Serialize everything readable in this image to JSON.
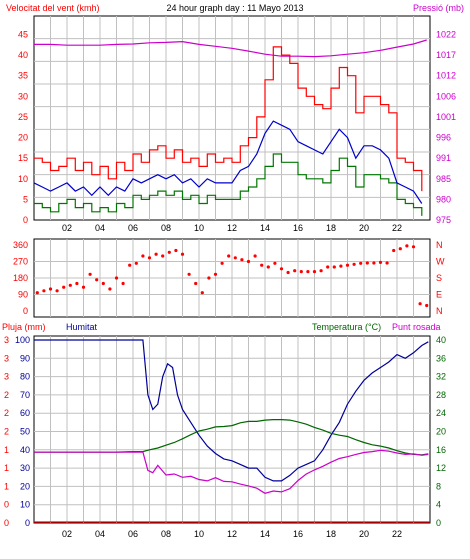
{
  "colors": {
    "wind_speed": "#ff0000",
    "wind_gust": "#ff0000",
    "wind_avg": "#0000cc",
    "wind_min": "#007700",
    "pressure": "#cc00cc",
    "wind_dir": "#ff0000",
    "rain": "#ff0000",
    "humidity": "#000099",
    "temperature": "#006600",
    "dewpoint": "#cc00cc",
    "grid": "#c0c0c0"
  },
  "chart_data": [
    {
      "type": "line",
      "title": "24 hour graph day : 11 Mayo 2013",
      "ylabel_left": "Velocitat del vent (kmh)",
      "ylabel_right": "Pressió (mb)",
      "y_ticks_left": [
        "0",
        "5",
        "10",
        "15",
        "20",
        "25",
        "30",
        "35",
        "40",
        "45"
      ],
      "y_ticks_right": [
        "975",
        "980",
        "985",
        "991",
        "996",
        "1001",
        "1006",
        "1012",
        "1017",
        "1022"
      ],
      "x_ticks": [
        "02",
        "04",
        "06",
        "08",
        "10",
        "12",
        "14",
        "16",
        "18",
        "20",
        "22"
      ],
      "grid": true,
      "ylim_left": [
        0,
        45
      ],
      "ylim_right": [
        975,
        1022
      ],
      "xlim": [
        0,
        24
      ],
      "series": [
        {
          "key": "gust",
          "x": [
            0,
            0.5,
            1,
            1.5,
            2,
            2.5,
            3,
            3.5,
            4,
            4.5,
            5,
            5.5,
            6,
            6.5,
            7,
            7.5,
            8,
            8.5,
            9,
            9.5,
            10,
            10.5,
            11,
            11.5,
            12,
            12.5,
            13,
            13.5,
            14,
            14.5,
            15,
            15.5,
            16,
            16.5,
            17,
            17.5,
            18,
            18.5,
            19,
            19.5,
            20,
            20.5,
            21,
            21.5,
            22,
            22.5,
            23,
            23.5
          ],
          "values": [
            15,
            14,
            12,
            13,
            15,
            12,
            14,
            11,
            13,
            10,
            14,
            12,
            16,
            14,
            17,
            18,
            15,
            17,
            14,
            15,
            13,
            16,
            14,
            15,
            14,
            18,
            20,
            25,
            34,
            42,
            40,
            38,
            32,
            30,
            28,
            27,
            32,
            37,
            35,
            26,
            30,
            30,
            28,
            26,
            15,
            14,
            12,
            7
          ]
        },
        {
          "key": "avg",
          "x": [
            0,
            0.5,
            1,
            1.5,
            2,
            2.5,
            3,
            3.5,
            4,
            4.5,
            5,
            5.5,
            6,
            6.5,
            7,
            7.5,
            8,
            8.5,
            9,
            9.5,
            10,
            10.5,
            11,
            11.5,
            12,
            12.5,
            13,
            13.5,
            14,
            14.5,
            15,
            15.5,
            16,
            16.5,
            17,
            17.5,
            18,
            18.5,
            19,
            19.5,
            20,
            20.5,
            21,
            21.5,
            22,
            22.5,
            23,
            23.5
          ],
          "values": [
            9,
            8,
            7,
            8,
            9,
            7,
            8,
            6,
            8,
            6,
            8,
            7,
            10,
            9,
            10,
            11,
            10,
            11,
            9,
            10,
            8,
            10,
            9,
            9,
            9,
            12,
            13,
            16,
            21,
            24,
            23,
            22,
            19,
            18,
            17,
            16,
            19,
            22,
            20,
            15,
            18,
            18,
            17,
            15,
            9,
            8,
            7,
            4
          ]
        },
        {
          "key": "min",
          "x": [
            0,
            0.5,
            1,
            1.5,
            2,
            2.5,
            3,
            3.5,
            4,
            4.5,
            5,
            5.5,
            6,
            6.5,
            7,
            7.5,
            8,
            8.5,
            9,
            9.5,
            10,
            10.5,
            11,
            11.5,
            12,
            12.5,
            13,
            13.5,
            14,
            14.5,
            15,
            15.5,
            16,
            16.5,
            17,
            17.5,
            18,
            18.5,
            19,
            19.5,
            20,
            20.5,
            21,
            21.5,
            22,
            22.5,
            23,
            23.5
          ],
          "values": [
            4,
            3,
            2,
            4,
            5,
            3,
            4,
            2,
            3,
            2,
            4,
            3,
            6,
            5,
            6,
            7,
            6,
            7,
            5,
            6,
            4,
            6,
            5,
            5,
            5,
            7,
            8,
            10,
            13,
            16,
            14,
            14,
            11,
            10,
            10,
            9,
            12,
            15,
            13,
            8,
            11,
            11,
            10,
            9,
            5,
            4,
            3,
            1
          ]
        },
        {
          "key": "pressure",
          "x": [
            0,
            1,
            2,
            3,
            4,
            5,
            6,
            7,
            8,
            9,
            10,
            11,
            12,
            13,
            14,
            15,
            16,
            17,
            18,
            19,
            20,
            21,
            22,
            23,
            23.8
          ],
          "values": [
            1019.5,
            1019.5,
            1019.3,
            1019.3,
            1019.3,
            1019.5,
            1019.6,
            1019.9,
            1020,
            1020.2,
            1019.5,
            1019,
            1018.5,
            1017.8,
            1017,
            1016.5,
            1016.5,
            1016.4,
            1016.6,
            1017,
            1017.4,
            1018,
            1018.8,
            1019.6,
            1020.6
          ]
        }
      ]
    },
    {
      "type": "scatter",
      "y_ticks_left": [
        "0",
        "90",
        "180",
        "270",
        "360"
      ],
      "y_ticks_right": [
        "N",
        "E",
        "S",
        "W",
        "N"
      ],
      "ylim": [
        0,
        360
      ],
      "xlim": [
        0,
        24
      ],
      "grid": true,
      "series": [
        {
          "key": "direction",
          "x": [
            0.2,
            0.6,
            1,
            1.4,
            1.8,
            2.2,
            2.6,
            3,
            3.4,
            3.8,
            4.2,
            4.6,
            5,
            5.4,
            5.8,
            6.2,
            6.6,
            7,
            7.4,
            7.8,
            8.2,
            8.6,
            9,
            9.4,
            9.8,
            10.2,
            10.6,
            11,
            11.4,
            11.8,
            12.2,
            12.6,
            13,
            13.4,
            13.8,
            14.2,
            14.6,
            15,
            15.4,
            15.8,
            16.2,
            16.6,
            17,
            17.4,
            17.8,
            18.2,
            18.6,
            19,
            19.4,
            19.8,
            20.2,
            20.6,
            21,
            21.4,
            21.8,
            22.2,
            22.6,
            23,
            23.4,
            23.8
          ],
          "values": [
            100,
            110,
            120,
            110,
            130,
            140,
            150,
            130,
            200,
            170,
            150,
            120,
            180,
            150,
            250,
            260,
            300,
            290,
            310,
            300,
            320,
            330,
            310,
            200,
            150,
            100,
            180,
            200,
            260,
            300,
            290,
            280,
            270,
            300,
            250,
            240,
            260,
            230,
            210,
            220,
            215,
            215,
            215,
            220,
            240,
            240,
            245,
            250,
            255,
            260,
            262,
            262,
            265,
            262,
            330,
            340,
            355,
            350,
            40,
            30
          ]
        }
      ]
    },
    {
      "type": "line",
      "ylabel_left": "Pluja (mm)",
      "ylabel_humidity": "Humitat",
      "ylabel_right": "Temperatura (°C)",
      "ylabel_right_2": "Punt rosada",
      "y_ticks_left_rain": [
        "0",
        "0",
        "1",
        "1",
        "1",
        "2",
        "2",
        "2",
        "3",
        "3",
        "3"
      ],
      "y_ticks_left_hum": [
        "0",
        "10",
        "20",
        "30",
        "40",
        "50",
        "60",
        "70",
        "80",
        "90",
        "100"
      ],
      "y_ticks_right": [
        "0",
        "4",
        "8",
        "12",
        "16",
        "20",
        "24",
        "28",
        "32",
        "36",
        "40"
      ],
      "x_ticks": [
        "02",
        "04",
        "06",
        "08",
        "10",
        "12",
        "14",
        "16",
        "18",
        "20",
        "22"
      ],
      "grid": true,
      "ylim_humidity": [
        0,
        100
      ],
      "ylim_temperature": [
        0,
        40
      ],
      "xlim": [
        0,
        24
      ],
      "series": [
        {
          "key": "rain",
          "x": [
            0,
            24
          ],
          "values": [
            0,
            0
          ]
        },
        {
          "key": "humidity",
          "x": [
            0,
            1,
            2,
            3,
            4,
            5,
            6,
            6.6,
            6.9,
            7.2,
            7.5,
            7.8,
            8.1,
            8.4,
            8.7,
            9,
            9.5,
            10,
            10.5,
            11,
            11.5,
            12,
            12.5,
            13,
            13.5,
            14,
            14.5,
            15,
            15.5,
            16,
            16.5,
            17,
            17.5,
            18,
            18.5,
            19,
            19.5,
            20,
            20.5,
            21,
            21.5,
            22,
            22.5,
            23,
            23.5,
            23.9
          ],
          "values": [
            100,
            100,
            100,
            100,
            100,
            100,
            100,
            100,
            70,
            62,
            65,
            80,
            87,
            85,
            70,
            62,
            55,
            48,
            42,
            38,
            35,
            34,
            32,
            30,
            30,
            25,
            23,
            23,
            26,
            30,
            32,
            34,
            40,
            48,
            55,
            65,
            72,
            78,
            82,
            85,
            88,
            92,
            90,
            93,
            97,
            99
          ]
        },
        {
          "key": "temperature",
          "x": [
            0,
            1,
            2,
            3,
            4,
            5,
            6,
            6.6,
            7,
            7.5,
            8,
            8.5,
            9,
            9.5,
            10,
            10.5,
            11,
            11.5,
            12,
            12.5,
            13,
            13.5,
            14,
            14.5,
            15,
            15.5,
            16,
            16.5,
            17,
            17.5,
            18,
            18.5,
            19,
            19.5,
            20,
            20.5,
            21,
            21.5,
            22,
            22.5,
            23,
            23.5,
            23.9
          ],
          "values": [
            15.5,
            15.5,
            15.5,
            15.5,
            15.5,
            15.5,
            15.6,
            15.6,
            16,
            16.4,
            17,
            17.6,
            18.4,
            19.3,
            20.1,
            20.5,
            21,
            21.1,
            21.3,
            21.9,
            22.2,
            22.2,
            22.5,
            22.6,
            22.6,
            22.5,
            22.1,
            21.6,
            20.9,
            20.3,
            19.6,
            19.2,
            18.9,
            18.2,
            17.6,
            17.1,
            16.8,
            16.4,
            15.8,
            15.3,
            15,
            14.9,
            15.1
          ]
        },
        {
          "key": "dewpoint",
          "x": [
            0,
            1,
            2,
            3,
            4,
            5,
            6,
            6.6,
            6.9,
            7.2,
            7.5,
            8,
            8.5,
            9,
            9.5,
            10,
            10.5,
            11,
            11.5,
            12,
            12.5,
            13,
            13.5,
            14,
            14.5,
            15,
            15.5,
            16,
            16.5,
            17,
            17.5,
            18,
            18.5,
            19,
            19.5,
            20,
            20.5,
            21,
            21.5,
            22,
            22.5,
            23,
            23.5,
            23.9
          ],
          "values": [
            15.5,
            15.5,
            15.5,
            15.5,
            15.5,
            15.5,
            15.5,
            15.5,
            11.5,
            11,
            12.6,
            10.5,
            10.7,
            10,
            10.2,
            9.5,
            9.2,
            9.9,
            9.1,
            9,
            8.5,
            8.1,
            7.6,
            6.5,
            7,
            6.8,
            7.5,
            9.3,
            10.7,
            11.6,
            12.4,
            13.3,
            14.1,
            14.5,
            15,
            15.4,
            15.6,
            15.9,
            15.7,
            15.3,
            15,
            15.1,
            14.8,
            15
          ]
        }
      ]
    }
  ]
}
